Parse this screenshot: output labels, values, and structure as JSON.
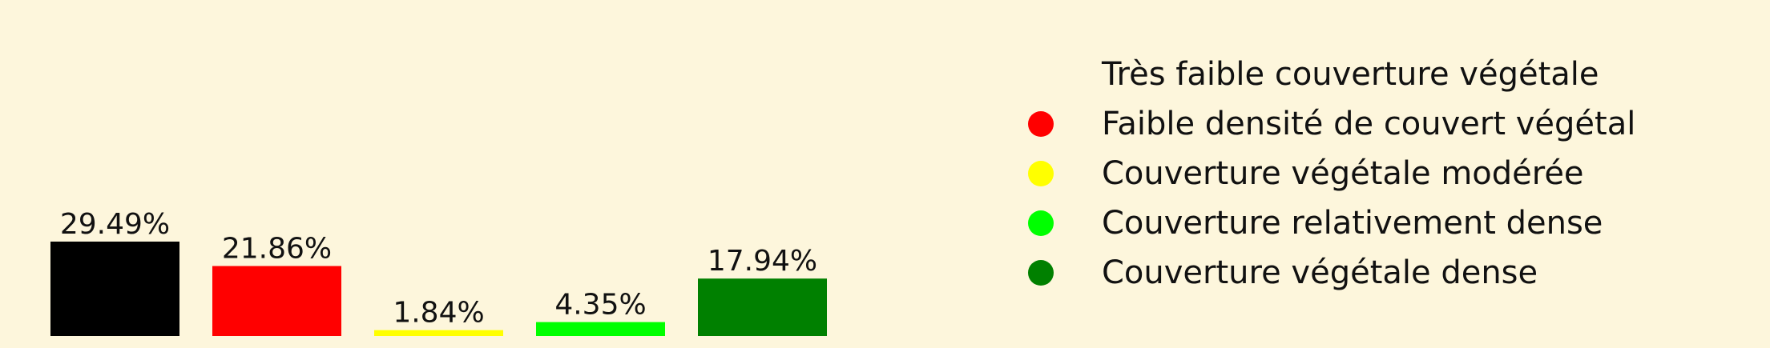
{
  "chart_data": {
    "type": "bar",
    "categories": [
      "Très faible couverture végétale",
      "Faible densité de couvert végétal",
      "Couverture végétale modérée",
      "Couverture relativement dense",
      "Couverture végétale dense"
    ],
    "values": [
      29.49,
      21.86,
      1.84,
      4.35,
      17.94
    ],
    "value_labels": [
      "29.49%",
      "21.86%",
      "1.84%",
      "4.35%",
      "17.94%"
    ],
    "colors": [
      "#000000",
      "#ff0000",
      "#ffff00",
      "#00ff00",
      "#008000"
    ],
    "ylim": [
      0,
      29.49
    ],
    "grid": false,
    "legend_position": "right",
    "legend": [
      {
        "label": "Très faible couverture végétale",
        "color": "#000000"
      },
      {
        "label": "Faible densité de couvert végétal",
        "color": "#ff0000"
      },
      {
        "label": "Couverture végétale modérée",
        "color": "#ffff00"
      },
      {
        "label": "Couverture relativement dense",
        "color": "#00ff00"
      },
      {
        "label": "Couverture végétale dense",
        "color": "#008000"
      }
    ]
  }
}
